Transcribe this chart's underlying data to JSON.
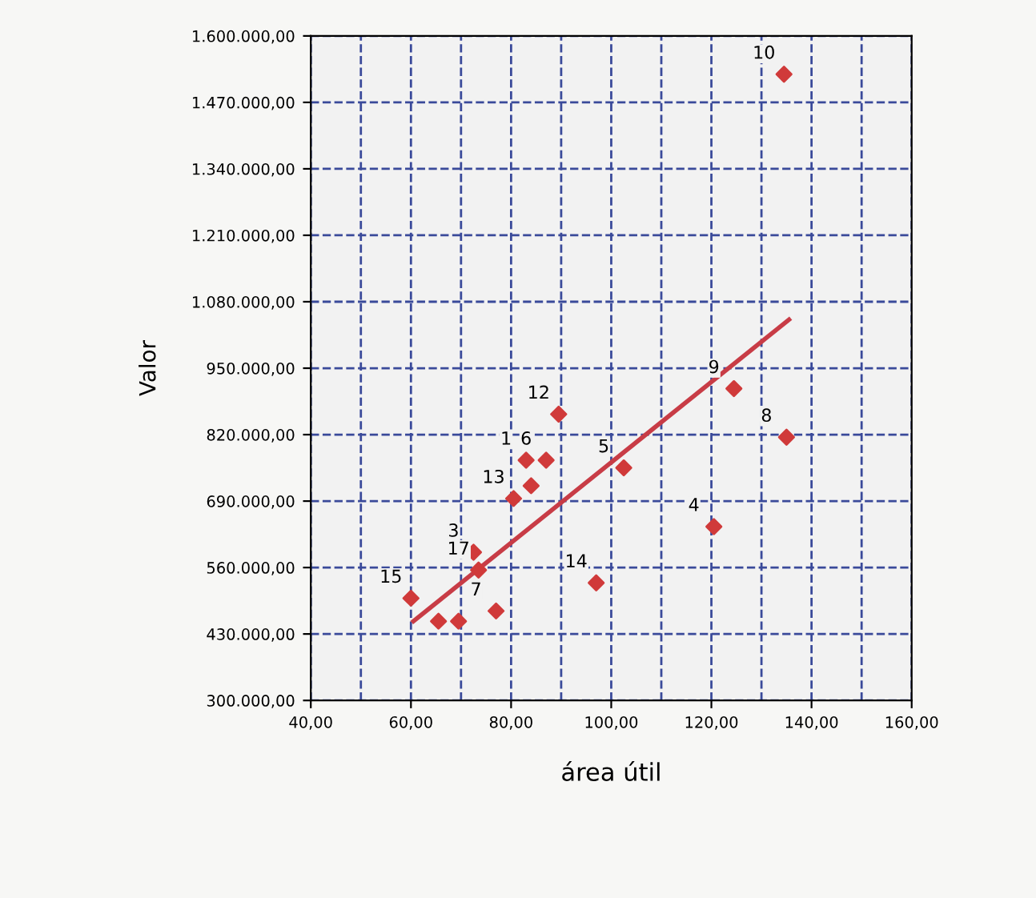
{
  "chart_data": {
    "type": "scatter",
    "xlabel": "área útil",
    "ylabel": "Valor",
    "xlim": [
      40,
      160
    ],
    "ylim": [
      300000,
      1600000
    ],
    "xticks": [
      {
        "value": 40,
        "label": "40,00"
      },
      {
        "value": 60,
        "label": "60,00"
      },
      {
        "value": 80,
        "label": "80,00"
      },
      {
        "value": 100,
        "label": "100,00"
      },
      {
        "value": 120,
        "label": "120,00"
      },
      {
        "value": 140,
        "label": "140,00"
      },
      {
        "value": 160,
        "label": "160,00"
      }
    ],
    "yticks": [
      {
        "value": 300000,
        "label": "300.000,00"
      },
      {
        "value": 430000,
        "label": "430.000,00"
      },
      {
        "value": 560000,
        "label": "560.000,00"
      },
      {
        "value": 690000,
        "label": "690.000,00"
      },
      {
        "value": 820000,
        "label": "820.000,00"
      },
      {
        "value": 950000,
        "label": "950.000,00"
      },
      {
        "value": 1080000,
        "label": "1.080.000,00"
      },
      {
        "value": 1210000,
        "label": "1.210.000,00"
      },
      {
        "value": 1340000,
        "label": "1.340.000,00"
      },
      {
        "value": 1470000,
        "label": "1.470.000,00"
      },
      {
        "value": 1600000,
        "label": "1.600.000,00"
      }
    ],
    "grid": true,
    "legend": false,
    "series": [
      {
        "color": "#d03a3a",
        "marker": "diamond",
        "x": [
          60,
          65.5,
          69.5,
          77,
          73.5,
          72.5,
          97,
          120.5,
          80.5,
          84,
          83,
          87,
          89.5,
          102.5,
          124.5,
          135,
          134.5
        ],
        "values": [
          500000,
          455000,
          455000,
          475000,
          555000,
          590000,
          530000,
          640000,
          695000,
          720000,
          770000,
          770000,
          860000,
          755000,
          910000,
          815000,
          1525000
        ]
      },
      {
        "type": "line",
        "color": "#c83c46",
        "x": [
          60.5,
          135.5
        ],
        "values": [
          455000,
          1045000
        ]
      }
    ],
    "annotations": [
      {
        "text": "15",
        "x": 60,
        "y": 500000
      },
      {
        "text": "7",
        "x": 77,
        "y": 475000
      },
      {
        "text": "17",
        "x": 73.5,
        "y": 555000
      },
      {
        "text": "3",
        "x": 72.5,
        "y": 590000
      },
      {
        "text": "14",
        "x": 97,
        "y": 530000
      },
      {
        "text": "4",
        "x": 120.5,
        "y": 640000
      },
      {
        "text": "13",
        "x": 80.5,
        "y": 695000
      },
      {
        "text": "1",
        "x": 83,
        "y": 770000
      },
      {
        "text": "6",
        "x": 87,
        "y": 770000
      },
      {
        "text": "12",
        "x": 89.5,
        "y": 860000
      },
      {
        "text": "5",
        "x": 102.5,
        "y": 755000
      },
      {
        "text": "9",
        "x": 124.5,
        "y": 910000
      },
      {
        "text": "8",
        "x": 135,
        "y": 815000
      },
      {
        "text": "10",
        "x": 134.5,
        "y": 1525000
      }
    ]
  }
}
